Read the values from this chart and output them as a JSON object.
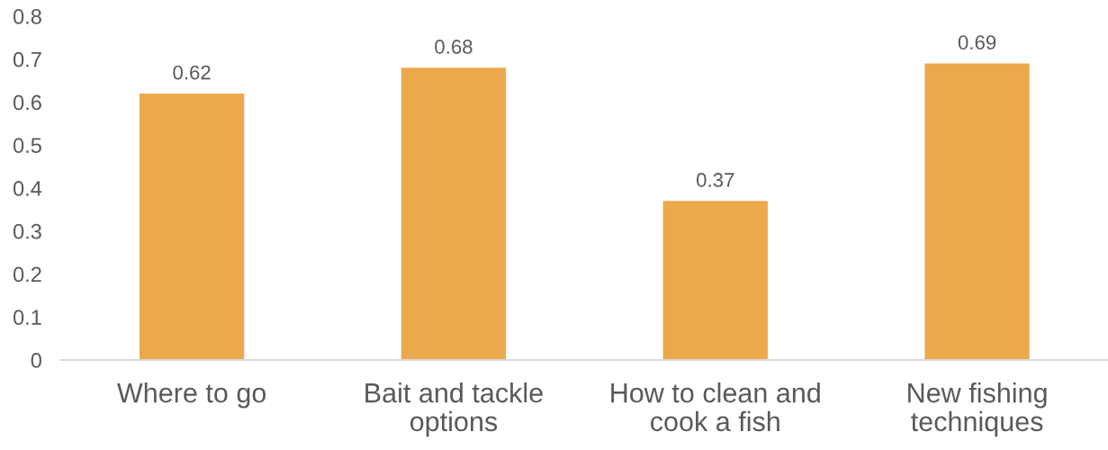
{
  "chart_data": {
    "type": "bar",
    "categories": [
      "Where to go",
      "Bait and tackle options",
      "How to clean and cook a fish",
      "New fishing techniques"
    ],
    "values": [
      0.62,
      0.68,
      0.37,
      0.69
    ],
    "color": "#eba94c",
    "ylim": [
      0,
      0.8
    ],
    "yticks": [
      0,
      0.1,
      0.2,
      0.3,
      0.4,
      0.5,
      0.6,
      0.7,
      0.8
    ],
    "data_labels": true
  }
}
